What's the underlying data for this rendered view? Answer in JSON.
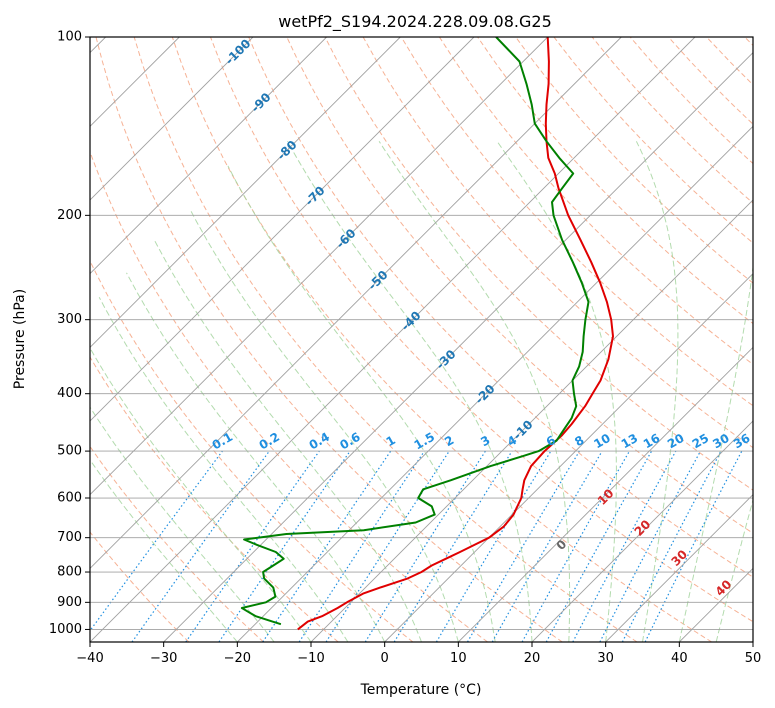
{
  "chart_data": {
    "type": "line",
    "chart_kind": "skew-t log-p sounding",
    "title": "wetPf2_S194.2024.228.09.08.G25",
    "xlabel": "Temperature (°C)",
    "ylabel": "Pressure (hPa)",
    "xlim": [
      -40,
      50
    ],
    "ylim": [
      1050,
      100
    ],
    "y_scale": "log",
    "grid": true,
    "x_ticks": [
      -40,
      -30,
      -20,
      -10,
      0,
      10,
      20,
      30,
      40,
      50
    ],
    "y_ticks": [
      100,
      200,
      300,
      400,
      500,
      600,
      700,
      800,
      900,
      1000
    ],
    "colors": {
      "temperature": "#e00000",
      "dewpoint": "#008000",
      "isotherm": "#a0a0a0",
      "dry_adiabat": "#f4a582",
      "moist_adiabat": "#a6d5a0",
      "mixing_ratio": "#1f8fe0",
      "isotherm_label": "#1f77b4",
      "adiabat_label": "#d62728"
    },
    "isotherm_labels": [
      "-100",
      "-90",
      "-80",
      "-70",
      "-60",
      "-50",
      "-40",
      "-30",
      "-20",
      "-10"
    ],
    "isotherm_label_values": [
      -100,
      -90,
      -80,
      -70,
      -60,
      -50,
      -40,
      -30,
      -20,
      -10
    ],
    "mixing_ratio_labels": [
      "0.1",
      "0.2",
      "0.4",
      "0.6",
      "1",
      "1.5",
      "2",
      "3",
      "4",
      "6",
      "8",
      "10",
      "13",
      "16",
      "20",
      "25",
      "30",
      "36"
    ],
    "mixing_ratio_values": [
      0.1,
      0.2,
      0.4,
      0.6,
      1,
      1.5,
      2,
      3,
      4,
      6,
      8,
      10,
      13,
      16,
      20,
      25,
      30,
      36
    ],
    "moist_adiabat_labels": [
      "0",
      "10",
      "20",
      "30",
      "40"
    ],
    "moist_adiabat_values": [
      0,
      10,
      20,
      30,
      40
    ],
    "series": [
      {
        "key": "temperature",
        "points": [
          [
            1000,
            -13.5
          ],
          [
            970,
            -13.2
          ],
          [
            950,
            -12.0
          ],
          [
            920,
            -11.0
          ],
          [
            900,
            -10.5
          ],
          [
            870,
            -9.5
          ],
          [
            850,
            -8.0
          ],
          [
            820,
            -5.5
          ],
          [
            800,
            -4.5
          ],
          [
            780,
            -4.0
          ],
          [
            760,
            -3.0
          ],
          [
            740,
            -2.0
          ],
          [
            720,
            -1.0
          ],
          [
            700,
            0.0
          ],
          [
            670,
            0.5
          ],
          [
            640,
            0.2
          ],
          [
            600,
            -1.0
          ],
          [
            580,
            -2.0
          ],
          [
            560,
            -3.0
          ],
          [
            530,
            -4.0
          ],
          [
            500,
            -4.2
          ],
          [
            470,
            -4.0
          ],
          [
            450,
            -4.2
          ],
          [
            420,
            -4.8
          ],
          [
            400,
            -5.5
          ],
          [
            380,
            -6.2
          ],
          [
            350,
            -8.0
          ],
          [
            320,
            -10.5
          ],
          [
            300,
            -13.0
          ],
          [
            280,
            -16.0
          ],
          [
            260,
            -19.5
          ],
          [
            240,
            -23.5
          ],
          [
            220,
            -28.0
          ],
          [
            200,
            -33.0
          ],
          [
            180,
            -38.0
          ],
          [
            170,
            -40.5
          ],
          [
            160,
            -43.5
          ],
          [
            150,
            -46.0
          ],
          [
            140,
            -48.5
          ],
          [
            130,
            -51.0
          ],
          [
            120,
            -53.5
          ],
          [
            110,
            -56.5
          ],
          [
            100,
            -60.0
          ]
        ]
      },
      {
        "key": "dewpoint",
        "points": [
          [
            980,
            -16.5
          ],
          [
            970,
            -18.0
          ],
          [
            950,
            -21.0
          ],
          [
            930,
            -23.0
          ],
          [
            920,
            -24.0
          ],
          [
            900,
            -21.5
          ],
          [
            880,
            -21.0
          ],
          [
            850,
            -22.5
          ],
          [
            820,
            -25.0
          ],
          [
            800,
            -26.0
          ],
          [
            780,
            -25.5
          ],
          [
            760,
            -25.0
          ],
          [
            740,
            -27.0
          ],
          [
            720,
            -30.5
          ],
          [
            705,
            -33.0
          ],
          [
            690,
            -28.0
          ],
          [
            680,
            -18.0
          ],
          [
            660,
            -12.0
          ],
          [
            640,
            -10.5
          ],
          [
            620,
            -12.0
          ],
          [
            600,
            -15.0
          ],
          [
            580,
            -15.5
          ],
          [
            560,
            -13.0
          ],
          [
            530,
            -9.5
          ],
          [
            510,
            -6.5
          ],
          [
            500,
            -5.0
          ],
          [
            480,
            -4.0
          ],
          [
            460,
            -4.5
          ],
          [
            440,
            -5.0
          ],
          [
            420,
            -6.0
          ],
          [
            400,
            -8.0
          ],
          [
            380,
            -10.0
          ],
          [
            360,
            -11.0
          ],
          [
            340,
            -12.5
          ],
          [
            320,
            -14.5
          ],
          [
            300,
            -16.5
          ],
          [
            280,
            -18.5
          ],
          [
            260,
            -22.0
          ],
          [
            240,
            -26.0
          ],
          [
            220,
            -30.5
          ],
          [
            200,
            -35.0
          ],
          [
            190,
            -37.0
          ],
          [
            180,
            -37.5
          ],
          [
            170,
            -38.0
          ],
          [
            160,
            -42.0
          ],
          [
            150,
            -46.0
          ],
          [
            140,
            -50.0
          ],
          [
            130,
            -53.0
          ],
          [
            120,
            -56.5
          ],
          [
            110,
            -60.5
          ],
          [
            100,
            -67.0
          ]
        ]
      }
    ]
  }
}
